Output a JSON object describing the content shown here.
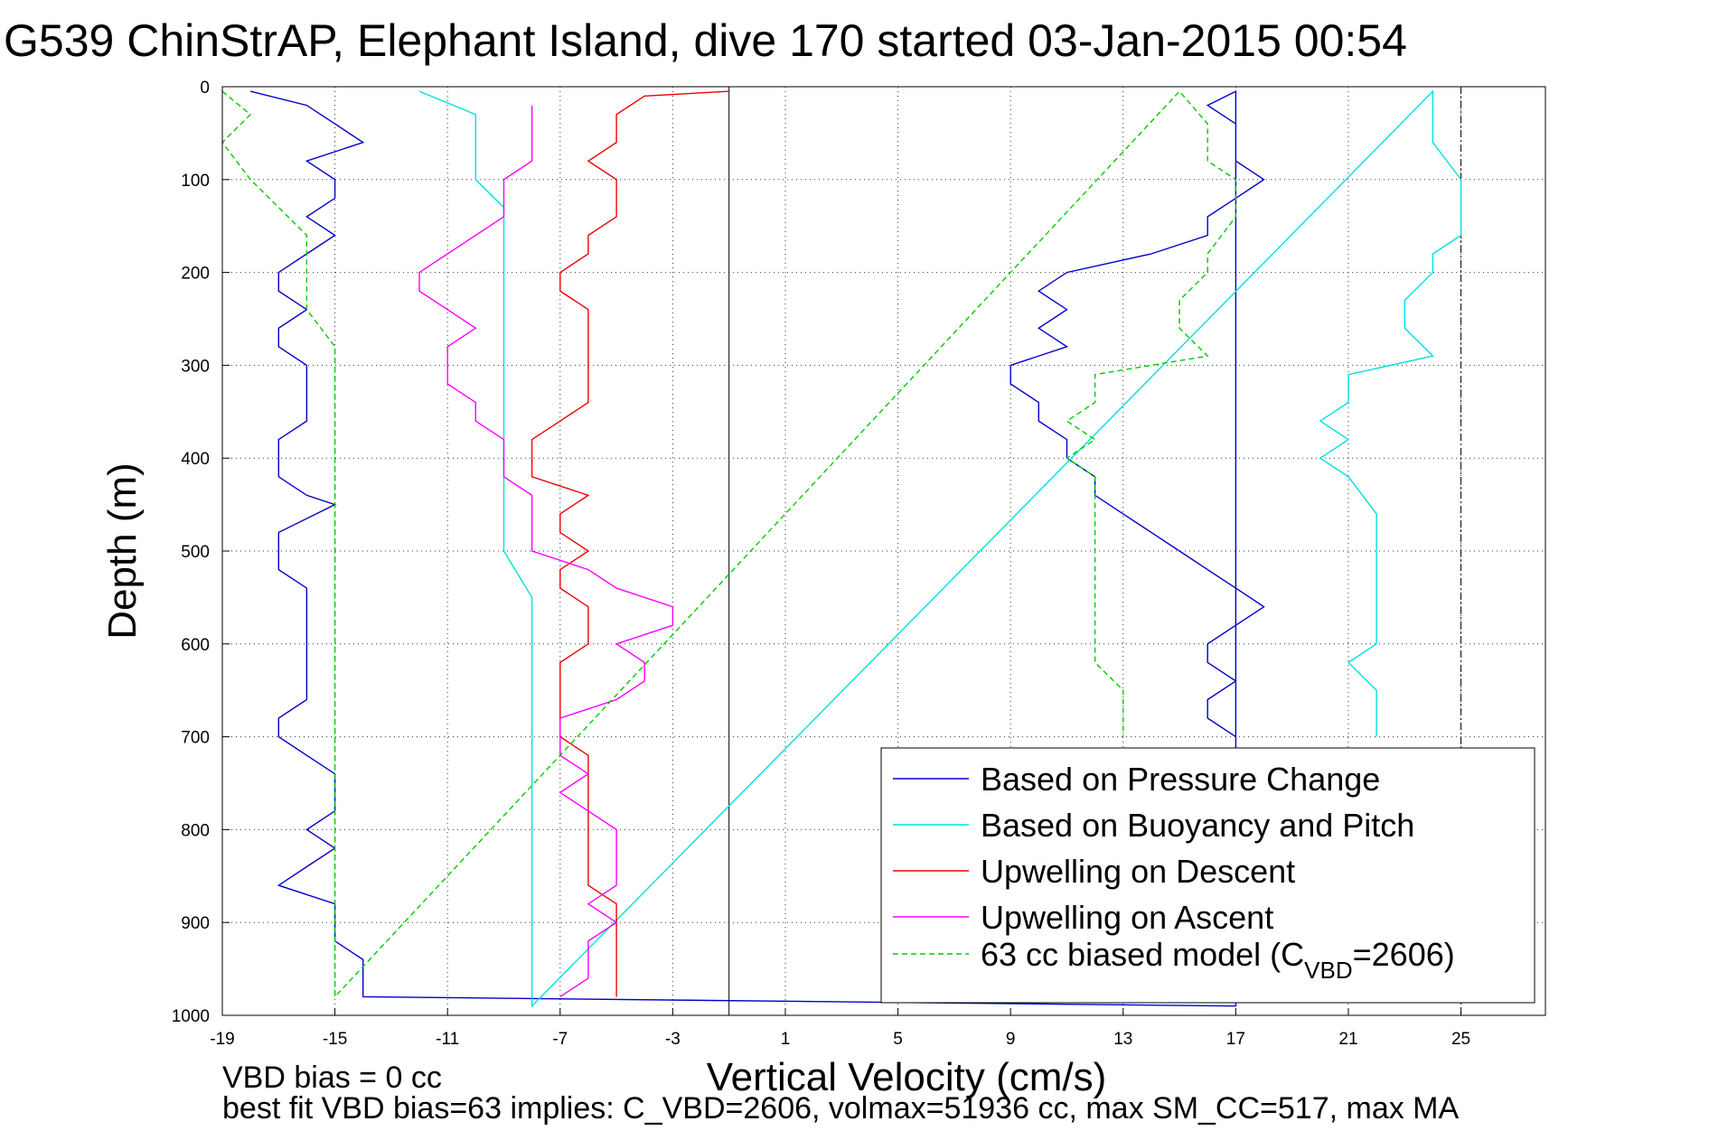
{
  "chart_data": {
    "type": "line",
    "title": "G539 ChinStrAP, Elephant Island, dive 170 started 03-Jan-2015 00:54",
    "xlabel": "Vertical Velocity (cm/s)",
    "ylabel": "Depth (m)",
    "xlim": [
      -19,
      28
    ],
    "ylim": [
      0,
      1000
    ],
    "y_reversed": true,
    "grid": true,
    "xticks": [
      -19,
      -15,
      -11,
      -7,
      -3,
      1,
      5,
      9,
      13,
      17,
      21,
      25
    ],
    "yticks": [
      0,
      100,
      200,
      300,
      400,
      500,
      600,
      700,
      800,
      900,
      1000
    ],
    "reference_lines": [
      {
        "x": -1,
        "style": "solid"
      },
      {
        "x": 25,
        "style": "dashdot"
      }
    ],
    "legend_position": "lower-right",
    "series": [
      {
        "name": "Based on Pressure Change",
        "color": "#0000cc",
        "style": "solid",
        "points": [
          [
            -18,
            5
          ],
          [
            -16,
            20
          ],
          [
            -15,
            40
          ],
          [
            -14,
            60
          ],
          [
            -16,
            80
          ],
          [
            -15,
            100
          ],
          [
            -15,
            120
          ],
          [
            -16,
            140
          ],
          [
            -15,
            160
          ],
          [
            -16,
            180
          ],
          [
            -17,
            200
          ],
          [
            -17,
            220
          ],
          [
            -16,
            240
          ],
          [
            -17,
            260
          ],
          [
            -17,
            280
          ],
          [
            -16,
            300
          ],
          [
            -16,
            320
          ],
          [
            -16,
            340
          ],
          [
            -16,
            360
          ],
          [
            -17,
            380
          ],
          [
            -17,
            400
          ],
          [
            -17,
            420
          ],
          [
            -16,
            440
          ],
          [
            -15,
            450
          ],
          [
            -17,
            480
          ],
          [
            -17,
            500
          ],
          [
            -17,
            520
          ],
          [
            -16,
            540
          ],
          [
            -16,
            560
          ],
          [
            -16,
            580
          ],
          [
            -16,
            600
          ],
          [
            -16,
            620
          ],
          [
            -16,
            640
          ],
          [
            -16,
            660
          ],
          [
            -17,
            680
          ],
          [
            -17,
            700
          ],
          [
            -16,
            720
          ],
          [
            -15,
            740
          ],
          [
            -15,
            760
          ],
          [
            -15,
            780
          ],
          [
            -16,
            800
          ],
          [
            -15,
            820
          ],
          [
            -16,
            840
          ],
          [
            -17,
            860
          ],
          [
            -15,
            880
          ],
          [
            -15,
            900
          ],
          [
            -15,
            920
          ],
          [
            -14,
            940
          ],
          [
            -14,
            960
          ],
          [
            -14,
            980
          ],
          [
            17,
            990
          ],
          [
            17,
            5
          ],
          [
            16,
            20
          ],
          [
            17,
            40
          ],
          [
            17,
            60
          ],
          [
            17,
            80
          ],
          [
            18,
            100
          ],
          [
            17,
            120
          ],
          [
            16,
            140
          ],
          [
            16,
            160
          ],
          [
            14,
            180
          ],
          [
            11,
            200
          ],
          [
            10,
            220
          ],
          [
            11,
            240
          ],
          [
            10,
            260
          ],
          [
            11,
            280
          ],
          [
            9,
            300
          ],
          [
            9,
            320
          ],
          [
            10,
            340
          ],
          [
            10,
            360
          ],
          [
            11,
            380
          ],
          [
            11,
            400
          ],
          [
            12,
            420
          ],
          [
            12,
            440
          ],
          [
            13,
            460
          ],
          [
            14,
            480
          ],
          [
            15,
            500
          ],
          [
            16,
            520
          ],
          [
            17,
            540
          ],
          [
            18,
            560
          ],
          [
            17,
            580
          ],
          [
            16,
            600
          ],
          [
            16,
            620
          ],
          [
            17,
            640
          ],
          [
            16,
            660
          ],
          [
            16,
            680
          ],
          [
            17,
            700
          ]
        ]
      },
      {
        "name": "Based on Buoyancy and Pitch",
        "color": "#00e0e0",
        "style": "solid",
        "points": [
          [
            -12,
            5
          ],
          [
            -10,
            30
          ],
          [
            -10,
            60
          ],
          [
            -10,
            100
          ],
          [
            -9,
            130
          ],
          [
            -9,
            150
          ],
          [
            -9,
            180
          ],
          [
            -9,
            200
          ],
          [
            -9,
            250
          ],
          [
            -9,
            300
          ],
          [
            -9,
            350
          ],
          [
            -9,
            400
          ],
          [
            -9,
            450
          ],
          [
            -9,
            500
          ],
          [
            -8,
            550
          ],
          [
            -8,
            600
          ],
          [
            -8,
            650
          ],
          [
            -8,
            700
          ],
          [
            -8,
            750
          ],
          [
            -8,
            800
          ],
          [
            -8,
            850
          ],
          [
            -8,
            900
          ],
          [
            -8,
            950
          ],
          [
            -8,
            990
          ],
          [
            24,
            5
          ],
          [
            24,
            30
          ],
          [
            24,
            60
          ],
          [
            25,
            100
          ],
          [
            25,
            130
          ],
          [
            25,
            160
          ],
          [
            24,
            180
          ],
          [
            24,
            200
          ],
          [
            23,
            230
          ],
          [
            23,
            260
          ],
          [
            24,
            290
          ],
          [
            21,
            310
          ],
          [
            21,
            340
          ],
          [
            20,
            360
          ],
          [
            21,
            380
          ],
          [
            20,
            400
          ],
          [
            21,
            420
          ],
          [
            22,
            460
          ],
          [
            22,
            500
          ],
          [
            22,
            540
          ],
          [
            22,
            580
          ],
          [
            22,
            600
          ],
          [
            21,
            620
          ],
          [
            22,
            650
          ],
          [
            22,
            680
          ],
          [
            22,
            700
          ]
        ]
      },
      {
        "name": "Upwelling on Descent",
        "color": "#ee0000",
        "style": "solid",
        "points": [
          [
            -1,
            5
          ],
          [
            -4,
            10
          ],
          [
            -5,
            30
          ],
          [
            -5,
            60
          ],
          [
            -6,
            80
          ],
          [
            -5,
            100
          ],
          [
            -5,
            120
          ],
          [
            -5,
            140
          ],
          [
            -6,
            160
          ],
          [
            -6,
            180
          ],
          [
            -7,
            200
          ],
          [
            -7,
            220
          ],
          [
            -6,
            240
          ],
          [
            -6,
            260
          ],
          [
            -6,
            280
          ],
          [
            -6,
            300
          ],
          [
            -6,
            320
          ],
          [
            -6,
            340
          ],
          [
            -7,
            360
          ],
          [
            -8,
            380
          ],
          [
            -8,
            400
          ],
          [
            -8,
            420
          ],
          [
            -6,
            440
          ],
          [
            -7,
            460
          ],
          [
            -7,
            480
          ],
          [
            -6,
            500
          ],
          [
            -7,
            520
          ],
          [
            -7,
            540
          ],
          [
            -6,
            560
          ],
          [
            -6,
            580
          ],
          [
            -6,
            600
          ],
          [
            -7,
            620
          ],
          [
            -7,
            640
          ],
          [
            -7,
            660
          ],
          [
            -7,
            680
          ],
          [
            -7,
            700
          ],
          [
            -6,
            720
          ],
          [
            -6,
            740
          ],
          [
            -6,
            760
          ],
          [
            -6,
            780
          ],
          [
            -6,
            800
          ],
          [
            -6,
            820
          ],
          [
            -6,
            840
          ],
          [
            -6,
            860
          ],
          [
            -5,
            880
          ],
          [
            -5,
            900
          ],
          [
            -5,
            920
          ],
          [
            -5,
            940
          ],
          [
            -5,
            960
          ],
          [
            -5,
            980
          ]
        ]
      },
      {
        "name": "Upwelling on Ascent",
        "color": "#ff00ff",
        "style": "solid",
        "points": [
          [
            -8,
            20
          ],
          [
            -8,
            40
          ],
          [
            -8,
            60
          ],
          [
            -8,
            80
          ],
          [
            -9,
            100
          ],
          [
            -9,
            120
          ],
          [
            -9,
            140
          ],
          [
            -10,
            160
          ],
          [
            -11,
            180
          ],
          [
            -12,
            200
          ],
          [
            -12,
            220
          ],
          [
            -11,
            240
          ],
          [
            -10,
            260
          ],
          [
            -11,
            280
          ],
          [
            -11,
            300
          ],
          [
            -11,
            320
          ],
          [
            -10,
            340
          ],
          [
            -10,
            360
          ],
          [
            -9,
            380
          ],
          [
            -9,
            400
          ],
          [
            -9,
            420
          ],
          [
            -8,
            440
          ],
          [
            -8,
            460
          ],
          [
            -8,
            480
          ],
          [
            -8,
            500
          ],
          [
            -6,
            520
          ],
          [
            -5,
            540
          ],
          [
            -3,
            560
          ],
          [
            -3,
            580
          ],
          [
            -5,
            600
          ],
          [
            -4,
            620
          ],
          [
            -4,
            640
          ],
          [
            -5,
            660
          ],
          [
            -7,
            680
          ],
          [
            -7,
            700
          ],
          [
            -7,
            720
          ],
          [
            -6,
            740
          ],
          [
            -7,
            760
          ],
          [
            -6,
            780
          ],
          [
            -5,
            800
          ],
          [
            -5,
            820
          ],
          [
            -5,
            840
          ],
          [
            -5,
            860
          ],
          [
            -6,
            880
          ],
          [
            -5,
            900
          ],
          [
            -6,
            920
          ],
          [
            -6,
            940
          ],
          [
            -6,
            960
          ],
          [
            -7,
            980
          ]
        ]
      },
      {
        "name": "63 cc biased model (C_VBD=2606)",
        "color": "#00cc00",
        "style": "dashed",
        "points": [
          [
            -19,
            5
          ],
          [
            -18,
            30
          ],
          [
            -19,
            60
          ],
          [
            -18,
            100
          ],
          [
            -17,
            130
          ],
          [
            -16,
            160
          ],
          [
            -16,
            180
          ],
          [
            -16,
            200
          ],
          [
            -16,
            240
          ],
          [
            -15,
            280
          ],
          [
            -15,
            300
          ],
          [
            -15,
            330
          ],
          [
            -15,
            360
          ],
          [
            -15,
            400
          ],
          [
            -15,
            430
          ],
          [
            -15,
            460
          ],
          [
            -15,
            500
          ],
          [
            -15,
            540
          ],
          [
            -15,
            580
          ],
          [
            -15,
            620
          ],
          [
            -15,
            660
          ],
          [
            -15,
            700
          ],
          [
            -15,
            740
          ],
          [
            -15,
            780
          ],
          [
            -15,
            820
          ],
          [
            -15,
            860
          ],
          [
            -15,
            900
          ],
          [
            -15,
            940
          ],
          [
            -15,
            980
          ],
          [
            15,
            5
          ],
          [
            16,
            40
          ],
          [
            16,
            80
          ],
          [
            17,
            100
          ],
          [
            17,
            140
          ],
          [
            16,
            180
          ],
          [
            16,
            200
          ],
          [
            15,
            230
          ],
          [
            15,
            260
          ],
          [
            16,
            290
          ],
          [
            12,
            310
          ],
          [
            12,
            340
          ],
          [
            11,
            360
          ],
          [
            12,
            380
          ],
          [
            11,
            400
          ],
          [
            12,
            420
          ],
          [
            12,
            460
          ],
          [
            12,
            500
          ],
          [
            12,
            540
          ],
          [
            12,
            580
          ],
          [
            12,
            600
          ],
          [
            12,
            620
          ],
          [
            13,
            650
          ],
          [
            13,
            680
          ],
          [
            13,
            700
          ]
        ]
      }
    ],
    "legend_entries": [
      "Based on Pressure Change",
      "Based on Buoyancy and Pitch",
      "Upwelling on Descent",
      "Upwelling on Ascent"
    ],
    "legend_last_entry": {
      "prefix": "63 cc biased model (C",
      "subscript": "VBD",
      "suffix": "=2606)"
    },
    "annotations": [
      "VBD bias = 0 cc",
      "best fit VBD bias=63 implies: C_VBD=2606, volmax=51936 cc, max SM_CC=517, max MA"
    ]
  }
}
